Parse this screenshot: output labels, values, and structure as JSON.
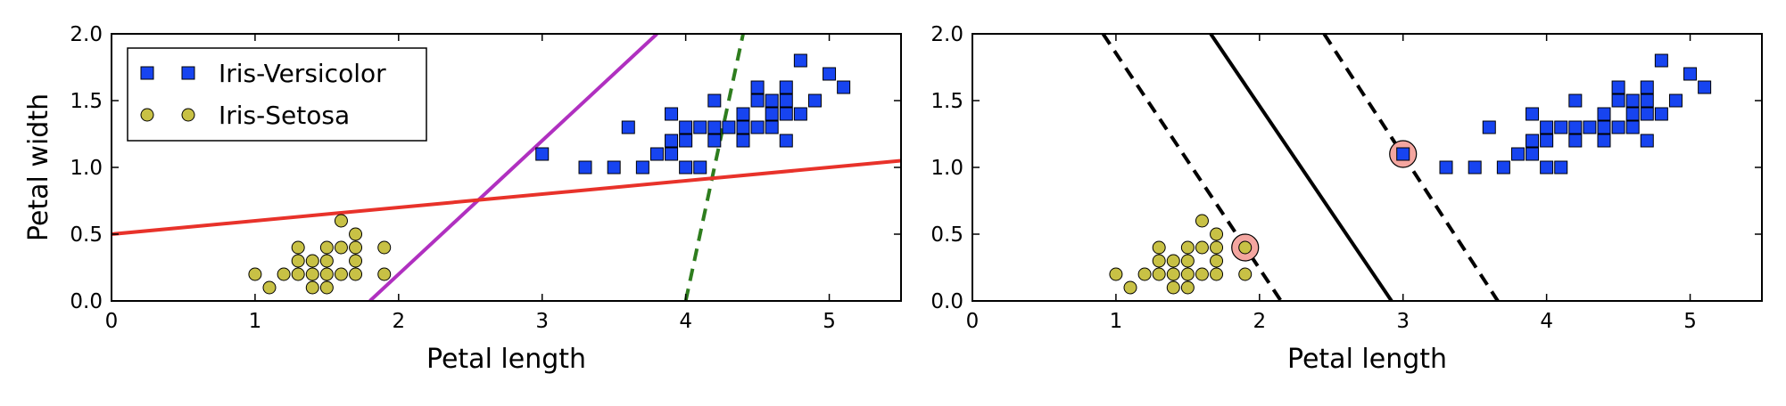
{
  "chart_data": [
    {
      "type": "scatter",
      "xlabel": "Petal length",
      "ylabel": "Petal width",
      "xlim": [
        0,
        5.5
      ],
      "ylim": [
        0,
        2.0
      ],
      "xticks": [
        "0",
        "1",
        "2",
        "3",
        "4",
        "5"
      ],
      "yticks": [
        "0.0",
        "0.5",
        "1.0",
        "1.5",
        "2.0"
      ],
      "legend": {
        "placement": "upper-left",
        "entries": [
          "Iris-Versicolor",
          "Iris-Setosa"
        ]
      },
      "series": [
        {
          "name": "Iris-Versicolor",
          "marker": "square",
          "color": "#1744f0",
          "points": [
            [
              3.0,
              1.1
            ],
            [
              3.3,
              1.0
            ],
            [
              3.5,
              1.0
            ],
            [
              3.6,
              1.3
            ],
            [
              3.7,
              1.0
            ],
            [
              3.8,
              1.1
            ],
            [
              3.9,
              1.1
            ],
            [
              3.9,
              1.2
            ],
            [
              3.9,
              1.4
            ],
            [
              4.0,
              1.0
            ],
            [
              4.0,
              1.2
            ],
            [
              4.0,
              1.3
            ],
            [
              4.1,
              1.0
            ],
            [
              4.1,
              1.3
            ],
            [
              4.2,
              1.2
            ],
            [
              4.2,
              1.3
            ],
            [
              4.2,
              1.5
            ],
            [
              4.3,
              1.3
            ],
            [
              4.4,
              1.2
            ],
            [
              4.4,
              1.3
            ],
            [
              4.4,
              1.4
            ],
            [
              4.5,
              1.3
            ],
            [
              4.5,
              1.5
            ],
            [
              4.5,
              1.6
            ],
            [
              4.6,
              1.3
            ],
            [
              4.6,
              1.4
            ],
            [
              4.6,
              1.5
            ],
            [
              4.7,
              1.2
            ],
            [
              4.7,
              1.4
            ],
            [
              4.7,
              1.5
            ],
            [
              4.7,
              1.6
            ],
            [
              4.8,
              1.4
            ],
            [
              4.8,
              1.8
            ],
            [
              4.9,
              1.5
            ],
            [
              5.0,
              1.7
            ],
            [
              5.1,
              1.6
            ]
          ]
        },
        {
          "name": "Iris-Setosa",
          "marker": "circle",
          "color": "#c8c145",
          "points": [
            [
              1.0,
              0.2
            ],
            [
              1.1,
              0.1
            ],
            [
              1.2,
              0.2
            ],
            [
              1.3,
              0.2
            ],
            [
              1.3,
              0.3
            ],
            [
              1.3,
              0.4
            ],
            [
              1.4,
              0.1
            ],
            [
              1.4,
              0.2
            ],
            [
              1.4,
              0.3
            ],
            [
              1.5,
              0.1
            ],
            [
              1.5,
              0.2
            ],
            [
              1.5,
              0.3
            ],
            [
              1.5,
              0.4
            ],
            [
              1.6,
              0.2
            ],
            [
              1.6,
              0.4
            ],
            [
              1.6,
              0.6
            ],
            [
              1.7,
              0.2
            ],
            [
              1.7,
              0.3
            ],
            [
              1.7,
              0.4
            ],
            [
              1.7,
              0.5
            ],
            [
              1.9,
              0.2
            ],
            [
              1.9,
              0.4
            ]
          ]
        }
      ],
      "lines": [
        {
          "style": "dashed",
          "color": "#2e7d1e",
          "points": [
            [
              4.0,
              0.0
            ],
            [
              4.4,
              2.0
            ]
          ]
        },
        {
          "style": "solid",
          "color": "#b030c0",
          "points": [
            [
              1.8,
              0.0
            ],
            [
              3.8,
              2.0
            ]
          ]
        },
        {
          "style": "solid",
          "color": "#e8322a",
          "points": [
            [
              0.0,
              0.5
            ],
            [
              5.5,
              1.05
            ]
          ]
        }
      ]
    },
    {
      "type": "scatter",
      "xlabel": "Petal length",
      "ylabel": "",
      "xlim": [
        0,
        5.5
      ],
      "ylim": [
        0,
        2.0
      ],
      "xticks": [
        "0",
        "1",
        "2",
        "3",
        "4",
        "5"
      ],
      "yticks": [
        "0.0",
        "0.5",
        "1.0",
        "1.5",
        "2.0"
      ],
      "series": [
        {
          "name": "Iris-Versicolor",
          "marker": "square",
          "color": "#1744f0",
          "points": [
            [
              3.0,
              1.1
            ],
            [
              3.3,
              1.0
            ],
            [
              3.5,
              1.0
            ],
            [
              3.6,
              1.3
            ],
            [
              3.7,
              1.0
            ],
            [
              3.8,
              1.1
            ],
            [
              3.9,
              1.1
            ],
            [
              3.9,
              1.2
            ],
            [
              3.9,
              1.4
            ],
            [
              4.0,
              1.0
            ],
            [
              4.0,
              1.2
            ],
            [
              4.0,
              1.3
            ],
            [
              4.1,
              1.0
            ],
            [
              4.1,
              1.3
            ],
            [
              4.2,
              1.2
            ],
            [
              4.2,
              1.3
            ],
            [
              4.2,
              1.5
            ],
            [
              4.3,
              1.3
            ],
            [
              4.4,
              1.2
            ],
            [
              4.4,
              1.3
            ],
            [
              4.4,
              1.4
            ],
            [
              4.5,
              1.3
            ],
            [
              4.5,
              1.5
            ],
            [
              4.5,
              1.6
            ],
            [
              4.6,
              1.3
            ],
            [
              4.6,
              1.4
            ],
            [
              4.6,
              1.5
            ],
            [
              4.7,
              1.2
            ],
            [
              4.7,
              1.4
            ],
            [
              4.7,
              1.5
            ],
            [
              4.7,
              1.6
            ],
            [
              4.8,
              1.4
            ],
            [
              4.8,
              1.8
            ],
            [
              4.9,
              1.5
            ],
            [
              5.0,
              1.7
            ],
            [
              5.1,
              1.6
            ]
          ]
        },
        {
          "name": "Iris-Setosa",
          "marker": "circle",
          "color": "#c8c145",
          "points": [
            [
              1.0,
              0.2
            ],
            [
              1.1,
              0.1
            ],
            [
              1.2,
              0.2
            ],
            [
              1.3,
              0.2
            ],
            [
              1.3,
              0.3
            ],
            [
              1.3,
              0.4
            ],
            [
              1.4,
              0.1
            ],
            [
              1.4,
              0.2
            ],
            [
              1.4,
              0.3
            ],
            [
              1.5,
              0.1
            ],
            [
              1.5,
              0.2
            ],
            [
              1.5,
              0.3
            ],
            [
              1.5,
              0.4
            ],
            [
              1.6,
              0.2
            ],
            [
              1.6,
              0.4
            ],
            [
              1.6,
              0.6
            ],
            [
              1.7,
              0.2
            ],
            [
              1.7,
              0.3
            ],
            [
              1.7,
              0.4
            ],
            [
              1.7,
              0.5
            ],
            [
              1.9,
              0.2
            ],
            [
              1.9,
              0.4
            ]
          ]
        }
      ],
      "support_vectors": {
        "color": "#f4a6a0",
        "points": [
          [
            1.9,
            0.4
          ],
          [
            3.0,
            1.1
          ]
        ]
      },
      "lines": [
        {
          "style": "solid",
          "color": "#000000",
          "points": [
            [
              1.66,
              2.0
            ],
            [
              2.92,
              0.0
            ]
          ]
        },
        {
          "style": "dashed",
          "color": "#000000",
          "points": [
            [
              0.91,
              2.0
            ],
            [
              2.15,
              0.0
            ]
          ]
        },
        {
          "style": "dashed",
          "color": "#000000",
          "points": [
            [
              2.45,
              2.0
            ],
            [
              3.66,
              0.0
            ]
          ]
        }
      ]
    }
  ]
}
